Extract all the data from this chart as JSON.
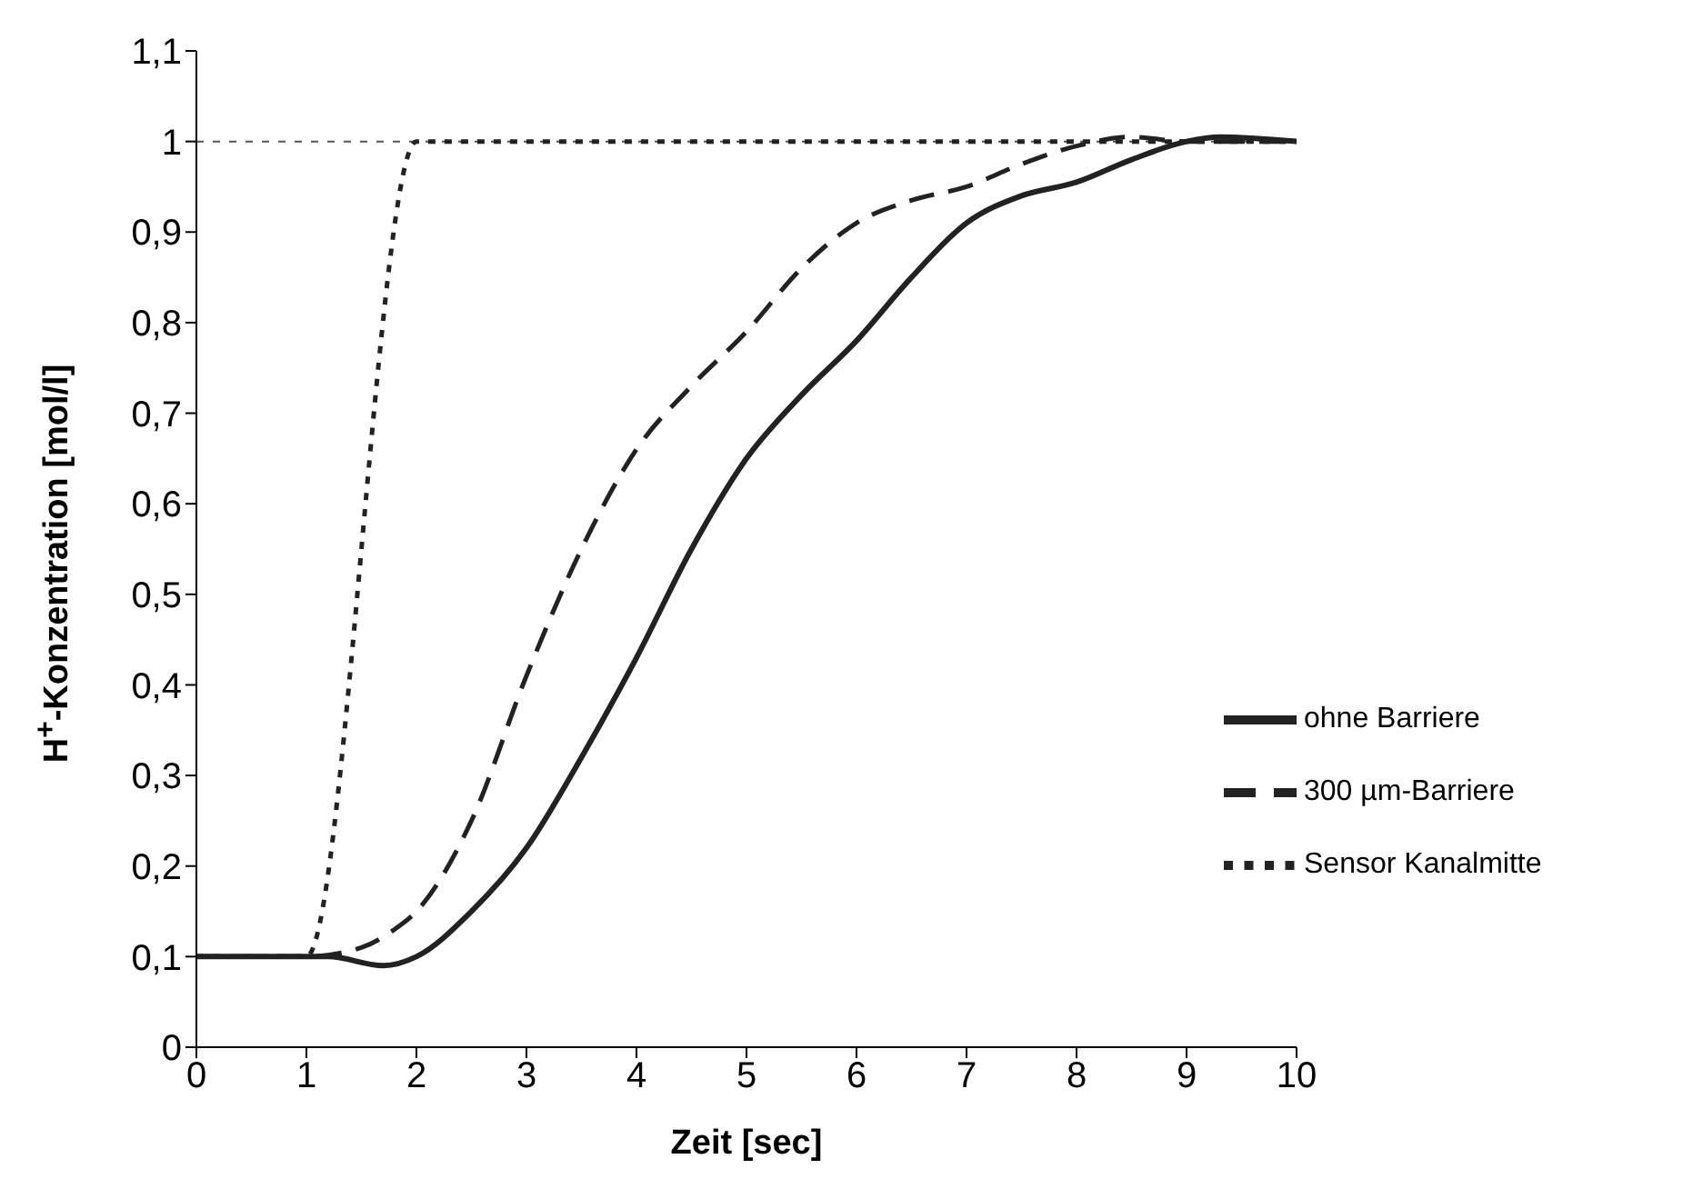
{
  "chart_data": {
    "type": "line",
    "xlabel": "Zeit [sec]",
    "ylabel": "H$^{+}$-Konzentration [mol/l]",
    "xlim": [
      0,
      10
    ],
    "xticks": [
      0,
      1,
      2,
      3,
      4,
      5,
      6,
      7,
      8,
      9,
      10
    ],
    "ylim": [
      0,
      1.1
    ],
    "yticks": [
      0,
      {
        "value": 0.1,
        "label": "0,1"
      },
      {
        "value": 0.2,
        "label": "0,2"
      },
      {
        "value": 0.3,
        "label": "0,3"
      },
      {
        "value": 0.4,
        "label": "0,4"
      },
      {
        "value": 0.5,
        "label": "0,5"
      },
      {
        "value": 0.6,
        "label": "0,6"
      },
      {
        "value": 0.7,
        "label": "0,7"
      },
      {
        "value": 0.8,
        "label": "0,8"
      },
      {
        "value": 0.9,
        "label": "0,9"
      },
      1,
      {
        "value": 1.1,
        "label": "1,1"
      }
    ],
    "grid": false,
    "legend": "bottom right",
    "marker": "none",
    "ref_lines": [
      {
        "axis": "y",
        "value": 1,
        "label": null,
        "color": "#555555",
        "line_style": "dotted"
      }
    ],
    "series": [
      {
        "name": "ohne Barriere",
        "color": "#222222",
        "line_style": "solid",
        "x": [
          0,
          1,
          1.2,
          1.7,
          2,
          2.5,
          3,
          3.5,
          4,
          4.5,
          5,
          5.5,
          6,
          6.5,
          7,
          7.5,
          8,
          8.5,
          9,
          9.3,
          10
        ],
        "values": [
          0.1,
          0.1,
          0.1,
          0.09,
          0.1,
          0.15,
          0.22,
          0.32,
          0.43,
          0.55,
          0.65,
          0.72,
          0.78,
          0.85,
          0.91,
          0.94,
          0.955,
          0.98,
          1.0,
          1.005,
          1.0
        ]
      },
      {
        "name": "300 µm-Barriere",
        "color": "#222222",
        "line_style": "dashed",
        "x": [
          0,
          1,
          1.5,
          1.8,
          2,
          2.5,
          3,
          3.5,
          4,
          4.5,
          5,
          5.5,
          6,
          6.5,
          7,
          7.5,
          8,
          8.5,
          9,
          10
        ],
        "values": [
          0.1,
          0.1,
          0.11,
          0.13,
          0.15,
          0.25,
          0.41,
          0.55,
          0.66,
          0.73,
          0.79,
          0.86,
          0.91,
          0.935,
          0.95,
          0.975,
          0.995,
          1.005,
          1.0,
          1.0
        ]
      },
      {
        "name": "Sensor Kanalmitte",
        "color": "#222222",
        "line_style": "dotted",
        "x": [
          0,
          1,
          2,
          10
        ],
        "values": [
          0.1,
          0.1,
          1,
          1
        ]
      }
    ]
  }
}
